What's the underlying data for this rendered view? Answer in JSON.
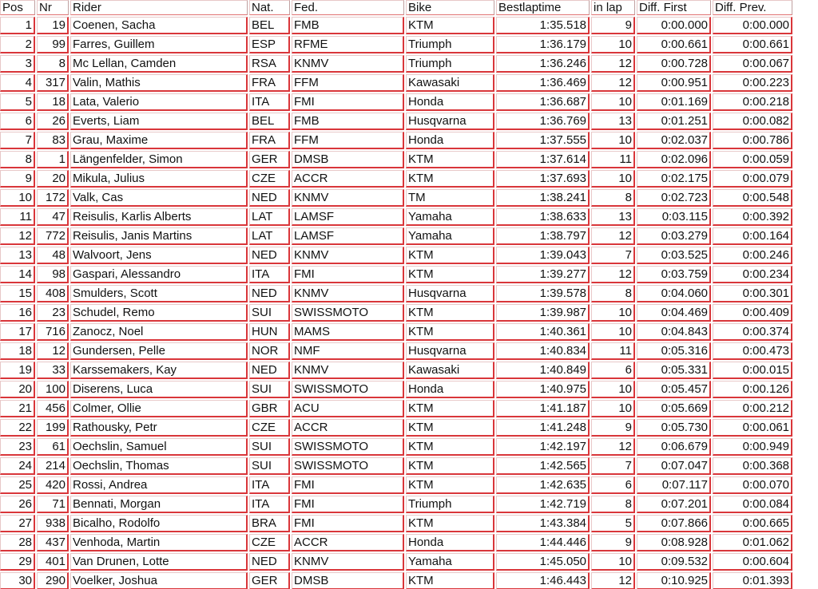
{
  "headers": [
    "Pos",
    "Nr",
    "Rider",
    "Nat.",
    "Fed.",
    "Bike",
    "Bestlaptime",
    "in lap",
    "Diff. First",
    "Diff. Prev."
  ],
  "rows": [
    [
      "1",
      "19",
      "Coenen, Sacha",
      "BEL",
      "FMB",
      "KTM",
      "1:35.518",
      "9",
      "0:00.000",
      "0:00.000"
    ],
    [
      "2",
      "99",
      "Farres, Guillem",
      "ESP",
      "RFME",
      "Triumph",
      "1:36.179",
      "10",
      "0:00.661",
      "0:00.661"
    ],
    [
      "3",
      "8",
      "Mc Lellan, Camden",
      "RSA",
      "KNMV",
      "Triumph",
      "1:36.246",
      "12",
      "0:00.728",
      "0:00.067"
    ],
    [
      "4",
      "317",
      "Valin, Mathis",
      "FRA",
      "FFM",
      "Kawasaki",
      "1:36.469",
      "12",
      "0:00.951",
      "0:00.223"
    ],
    [
      "5",
      "18",
      "Lata, Valerio",
      "ITA",
      "FMI",
      "Honda",
      "1:36.687",
      "10",
      "0:01.169",
      "0:00.218"
    ],
    [
      "6",
      "26",
      "Everts, Liam",
      "BEL",
      "FMB",
      "Husqvarna",
      "1:36.769",
      "13",
      "0:01.251",
      "0:00.082"
    ],
    [
      "7",
      "83",
      "Grau, Maxime",
      "FRA",
      "FFM",
      "Honda",
      "1:37.555",
      "10",
      "0:02.037",
      "0:00.786"
    ],
    [
      "8",
      "1",
      "Längenfelder, Simon",
      "GER",
      "DMSB",
      "KTM",
      "1:37.614",
      "11",
      "0:02.096",
      "0:00.059"
    ],
    [
      "9",
      "20",
      "Mikula, Julius",
      "CZE",
      "ACCR",
      "KTM",
      "1:37.693",
      "10",
      "0:02.175",
      "0:00.079"
    ],
    [
      "10",
      "172",
      "Valk, Cas",
      "NED",
      "KNMV",
      "TM",
      "1:38.241",
      "8",
      "0:02.723",
      "0:00.548"
    ],
    [
      "11",
      "47",
      "Reisulis, Karlis Alberts",
      "LAT",
      "LAMSF",
      "Yamaha",
      "1:38.633",
      "13",
      "0:03.115",
      "0:00.392"
    ],
    [
      "12",
      "772",
      "Reisulis, Janis Martins",
      "LAT",
      "LAMSF",
      "Yamaha",
      "1:38.797",
      "12",
      "0:03.279",
      "0:00.164"
    ],
    [
      "13",
      "48",
      "Walvoort, Jens",
      "NED",
      "KNMV",
      "KTM",
      "1:39.043",
      "7",
      "0:03.525",
      "0:00.246"
    ],
    [
      "14",
      "98",
      "Gaspari, Alessandro",
      "ITA",
      "FMI",
      "KTM",
      "1:39.277",
      "12",
      "0:03.759",
      "0:00.234"
    ],
    [
      "15",
      "408",
      "Smulders, Scott",
      "NED",
      "KNMV",
      "Husqvarna",
      "1:39.578",
      "8",
      "0:04.060",
      "0:00.301"
    ],
    [
      "16",
      "23",
      "Schudel, Remo",
      "SUI",
      "SWISSMOTO",
      "KTM",
      "1:39.987",
      "10",
      "0:04.469",
      "0:00.409"
    ],
    [
      "17",
      "716",
      "Zanocz, Noel",
      "HUN",
      "MAMS",
      "KTM",
      "1:40.361",
      "10",
      "0:04.843",
      "0:00.374"
    ],
    [
      "18",
      "12",
      "Gundersen, Pelle",
      "NOR",
      "NMF",
      "Husqvarna",
      "1:40.834",
      "11",
      "0:05.316",
      "0:00.473"
    ],
    [
      "19",
      "33",
      "Karssemakers, Kay",
      "NED",
      "KNMV",
      "Kawasaki",
      "1:40.849",
      "6",
      "0:05.331",
      "0:00.015"
    ],
    [
      "20",
      "100",
      "Diserens, Luca",
      "SUI",
      "SWISSMOTO",
      "Honda",
      "1:40.975",
      "10",
      "0:05.457",
      "0:00.126"
    ],
    [
      "21",
      "456",
      "Colmer, Ollie",
      "GBR",
      "ACU",
      "KTM",
      "1:41.187",
      "10",
      "0:05.669",
      "0:00.212"
    ],
    [
      "22",
      "199",
      "Rathousky, Petr",
      "CZE",
      "ACCR",
      "KTM",
      "1:41.248",
      "9",
      "0:05.730",
      "0:00.061"
    ],
    [
      "23",
      "61",
      "Oechslin, Samuel",
      "SUI",
      "SWISSMOTO",
      "KTM",
      "1:42.197",
      "12",
      "0:06.679",
      "0:00.949"
    ],
    [
      "24",
      "214",
      "Oechslin, Thomas",
      "SUI",
      "SWISSMOTO",
      "KTM",
      "1:42.565",
      "7",
      "0:07.047",
      "0:00.368"
    ],
    [
      "25",
      "420",
      "Rossi, Andrea",
      "ITA",
      "FMI",
      "KTM",
      "1:42.635",
      "6",
      "0:07.117",
      "0:00.070"
    ],
    [
      "26",
      "71",
      "Bennati, Morgan",
      "ITA",
      "FMI",
      "Triumph",
      "1:42.719",
      "8",
      "0:07.201",
      "0:00.084"
    ],
    [
      "27",
      "938",
      "Bicalho, Rodolfo",
      "BRA",
      "FMI",
      "KTM",
      "1:43.384",
      "5",
      "0:07.866",
      "0:00.665"
    ],
    [
      "28",
      "437",
      "Venhoda, Martin",
      "CZE",
      "ACCR",
      "Honda",
      "1:44.446",
      "9",
      "0:08.928",
      "0:01.062"
    ],
    [
      "29",
      "401",
      "Van Drunen, Lotte",
      "NED",
      "KNMV",
      "Yamaha",
      "1:45.050",
      "10",
      "0:09.532",
      "0:00.604"
    ],
    [
      "30",
      "290",
      "Voelker, Joshua",
      "GER",
      "DMSB",
      "KTM",
      "1:46.443",
      "12",
      "0:10.925",
      "0:01.393"
    ]
  ]
}
